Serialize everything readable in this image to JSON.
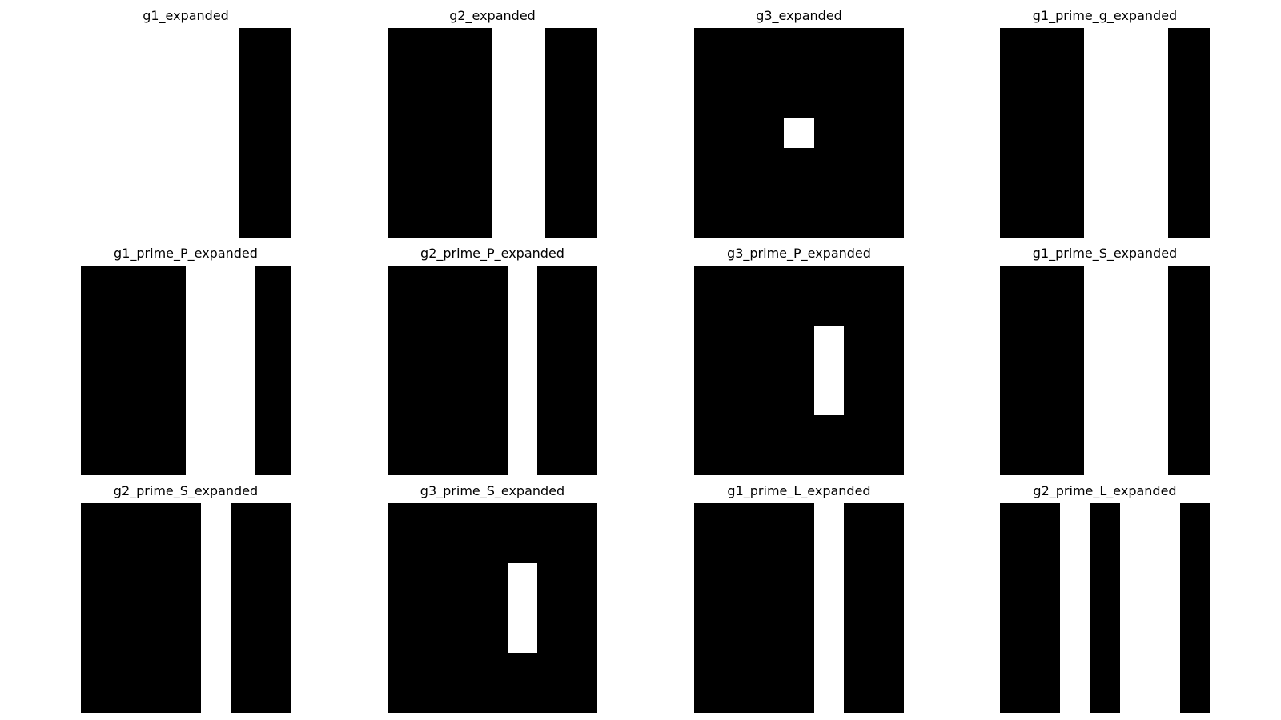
{
  "colors": {
    "fill": "#000000",
    "empty": "#ffffff"
  },
  "panels": [
    {
      "title": "g1_expanded",
      "grid": [
        "0001",
        "0001",
        "0001",
        "0001",
        "0001",
        "0001",
        "0001"
      ]
    },
    {
      "title": "g2_expanded",
      "grid": [
        "1101",
        "1101",
        "1101",
        "1101",
        "1101",
        "1101",
        "1101"
      ]
    },
    {
      "title": "g3_expanded",
      "grid": [
        "1111111",
        "1111111",
        "1111111",
        "1110111",
        "1111111",
        "1111111",
        "1111111"
      ]
    },
    {
      "title": "g1_prime_g_expanded",
      "grid": [
        "11001",
        "11001",
        "11001",
        "11001",
        "11001",
        "11001",
        "11001"
      ]
    },
    {
      "title": "g1_prime_P_expanded",
      "grid": [
        "111001",
        "111001",
        "111001",
        "111001",
        "111001",
        "111001",
        "111001"
      ]
    },
    {
      "title": "g2_prime_P_expanded",
      "grid": [
        "1111011",
        "1111011",
        "1111011",
        "1111011",
        "1111011",
        "1111011",
        "1111011"
      ]
    },
    {
      "title": "g3_prime_P_expanded",
      "grid": [
        "1111111",
        "1111111",
        "1111011",
        "1111011",
        "1111011",
        "1111111",
        "1111111"
      ]
    },
    {
      "title": "g1_prime_S_expanded",
      "grid": [
        "11001",
        "11001",
        "11001",
        "11001",
        "11001",
        "11001",
        "11001"
      ]
    },
    {
      "title": "g2_prime_S_expanded",
      "grid": [
        "1111011",
        "1111011",
        "1111011",
        "1111011",
        "1111011",
        "1111011",
        "1111011"
      ]
    },
    {
      "title": "g3_prime_S_expanded",
      "grid": [
        "1111111",
        "1111111",
        "1111011",
        "1111011",
        "1111011",
        "1111111",
        "1111111"
      ]
    },
    {
      "title": "g1_prime_L_expanded",
      "grid": [
        "1111011",
        "1111011",
        "1111011",
        "1111011",
        "1111011",
        "1111011",
        "1111011"
      ]
    },
    {
      "title": "g2_prime_L_expanded",
      "grid": [
        "1101001",
        "1101001",
        "1101001",
        "1101001",
        "1101001",
        "1101001",
        "1101001"
      ]
    }
  ]
}
